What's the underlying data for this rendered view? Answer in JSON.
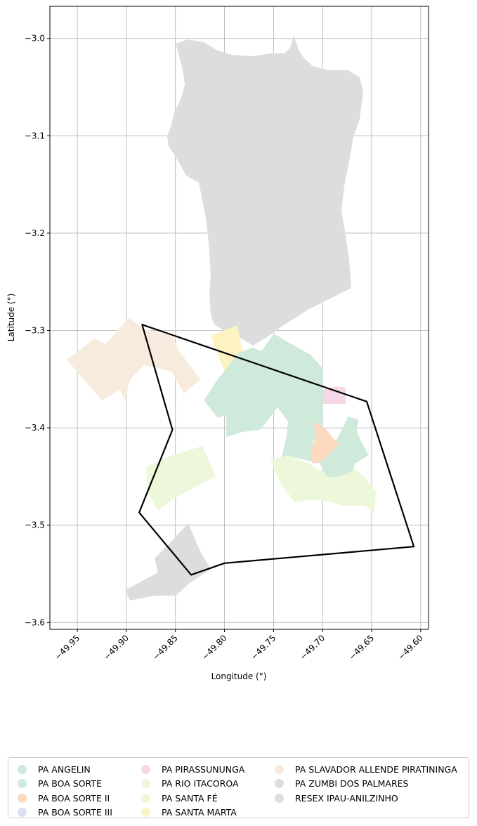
{
  "map": {
    "xlabel": "Longitude (°)",
    "ylabel": "Latitude (°)",
    "xlim": [
      -49.978,
      -49.592
    ],
    "ylim": [
      -3.607,
      -2.967
    ],
    "xticks": [
      "−49.95",
      "−49.90",
      "−49.85",
      "−49.80",
      "−49.75",
      "−49.70",
      "−49.65",
      "−49.60"
    ],
    "yticks": [
      "−3.0",
      "−3.1",
      "−3.2",
      "−3.3",
      "−3.4",
      "−3.5",
      "−3.6"
    ],
    "grid": true,
    "boundary": {
      "color": "#000000",
      "points": [
        [
          -49.884,
          -3.294
        ],
        [
          -49.655,
          -3.373
        ],
        [
          -49.607,
          -3.522
        ],
        [
          -49.8,
          -3.539
        ],
        [
          -49.834,
          -3.551
        ],
        [
          -49.887,
          -3.487
        ],
        [
          -49.853,
          -3.402
        ]
      ]
    }
  },
  "legend": {
    "items": [
      {
        "label": "PA ANGELIN",
        "color": "#cfeadb"
      },
      {
        "label": "PA BOA SORTE",
        "color": "#cfeadb"
      },
      {
        "label": "PA BOA SORTE II",
        "color": "#fdd9c0"
      },
      {
        "label": "PA BOA SORTE III",
        "color": "#dde1ef"
      },
      {
        "label": "PA PIRASSUNUNGA",
        "color": "#f6d7e8"
      },
      {
        "label": "PA RIO ITACOROA",
        "color": "#edf7d9"
      },
      {
        "label": "PA SANTA FÉ",
        "color": "#edf7d9"
      },
      {
        "label": "PA SANTA MARTA",
        "color": "#fdf3c0"
      },
      {
        "label": "PA SLAVADOR ALLENDE PIRATININGA",
        "color": "#f6ebdc"
      },
      {
        "label": "PA ZUMBI DOS PALMARES",
        "color": "#dddddd"
      },
      {
        "label": "RESEX IPAU-ANILZINHO",
        "color": "#dddddd"
      }
    ]
  }
}
